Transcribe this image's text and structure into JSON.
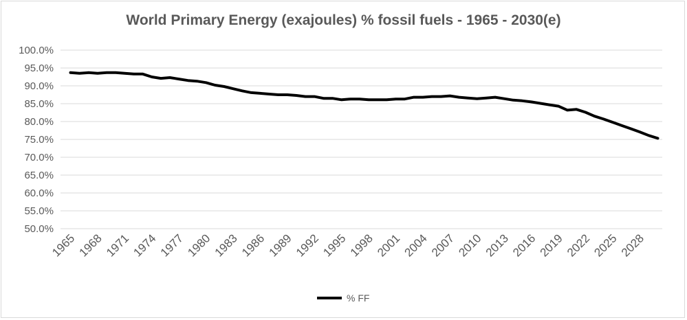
{
  "chart_data": {
    "type": "line",
    "title": "World Primary Energy (exajoules) % fossil fuels - 1965 - 2030(e)",
    "xlabel": "",
    "ylabel": "",
    "ylim": [
      50,
      100
    ],
    "y_ticks": [
      "100.0%",
      "95.0%",
      "90.0%",
      "85.0%",
      "80.0%",
      "75.0%",
      "70.0%",
      "65.0%",
      "60.0%",
      "55.0%",
      "50.0%"
    ],
    "x_tick_labels": [
      "1965",
      "1968",
      "1971",
      "1974",
      "1977",
      "1980",
      "1983",
      "1986",
      "1989",
      "1992",
      "1995",
      "1998",
      "2001",
      "2004",
      "2007",
      "2010",
      "2013",
      "2016",
      "2019",
      "2022",
      "2025",
      "2028"
    ],
    "grid": true,
    "legend": "bottom-center",
    "x": [
      1965,
      1966,
      1967,
      1968,
      1969,
      1970,
      1971,
      1972,
      1973,
      1974,
      1975,
      1976,
      1977,
      1978,
      1979,
      1980,
      1981,
      1982,
      1983,
      1984,
      1985,
      1986,
      1987,
      1988,
      1989,
      1990,
      1991,
      1992,
      1993,
      1994,
      1995,
      1996,
      1997,
      1998,
      1999,
      2000,
      2001,
      2002,
      2003,
      2004,
      2005,
      2006,
      2007,
      2008,
      2009,
      2010,
      2011,
      2012,
      2013,
      2014,
      2015,
      2016,
      2017,
      2018,
      2019,
      2020,
      2021,
      2022,
      2023,
      2024,
      2025,
      2026,
      2027,
      2028,
      2029,
      2030
    ],
    "series": [
      {
        "name": "% FF",
        "color": "#000000",
        "values": [
          93.7,
          93.5,
          93.7,
          93.5,
          93.7,
          93.7,
          93.5,
          93.3,
          93.3,
          92.5,
          92.1,
          92.3,
          91.9,
          91.5,
          91.3,
          90.9,
          90.2,
          89.8,
          89.2,
          88.6,
          88.1,
          87.9,
          87.7,
          87.5,
          87.5,
          87.3,
          87.0,
          87.0,
          86.5,
          86.5,
          86.1,
          86.3,
          86.3,
          86.1,
          86.1,
          86.1,
          86.3,
          86.3,
          86.8,
          86.8,
          87.0,
          87.0,
          87.2,
          86.8,
          86.6,
          86.4,
          86.6,
          86.8,
          86.4,
          86.0,
          85.8,
          85.5,
          85.1,
          84.7,
          84.3,
          83.2,
          83.4,
          82.6,
          81.5,
          80.7,
          79.8,
          78.9,
          78.0,
          77.1,
          76.1,
          75.3
        ]
      }
    ]
  }
}
